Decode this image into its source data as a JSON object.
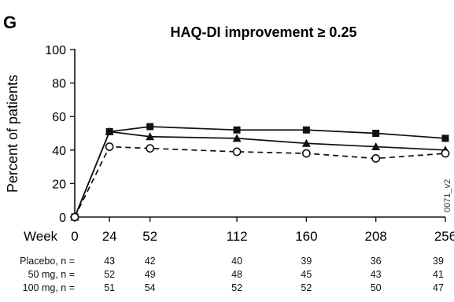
{
  "panel_label": "G",
  "watermark": "0071_v2",
  "chart_data": {
    "type": "line",
    "title": "HAQ-DI improvement ≥ 0.25",
    "ylabel": "Percent of patients",
    "xlabel": "Week",
    "xlim": [
      0,
      256
    ],
    "ylim": [
      0,
      100
    ],
    "yticks": [
      0,
      20,
      40,
      60,
      80,
      100
    ],
    "xticks": [
      0,
      24,
      52,
      112,
      160,
      208,
      256
    ],
    "x": [
      0,
      24,
      52,
      112,
      160,
      208,
      256
    ],
    "series": [
      {
        "marker": "square",
        "line": "solid",
        "values": [
          0,
          51,
          54,
          52,
          52,
          50,
          47
        ]
      },
      {
        "marker": "triangle",
        "line": "solid",
        "values": [
          0,
          51,
          48,
          47,
          44,
          42,
          40
        ]
      },
      {
        "marker": "open-circle",
        "line": "dashed",
        "values": [
          0,
          42,
          41,
          39,
          38,
          35,
          38
        ]
      }
    ]
  },
  "n_table": {
    "rows": [
      {
        "label": "Placebo, n =",
        "values": [
          "43",
          "42",
          "40",
          "39",
          "36",
          "39"
        ]
      },
      {
        "label": "50 mg, n =",
        "values": [
          "52",
          "49",
          "48",
          "45",
          "43",
          "41"
        ]
      },
      {
        "label": "100 mg, n =",
        "values": [
          "51",
          "54",
          "52",
          "52",
          "50",
          "47"
        ]
      }
    ]
  }
}
